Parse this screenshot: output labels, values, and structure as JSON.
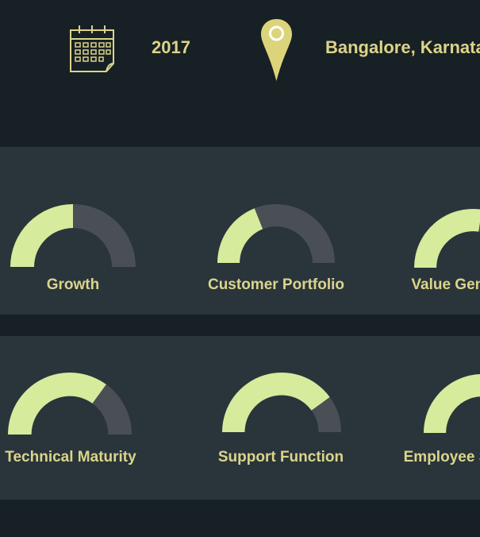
{
  "info": {
    "year": "2017",
    "location": "Bangalore, Karnataka",
    "calendar_icon": "calendar-icon",
    "location_icon": "map-pin-icon"
  },
  "colors": {
    "background": "#172024",
    "panel": "#29353b",
    "accent_text": "#dcd48a",
    "gauge_fill": "#d6eb9c",
    "gauge_track": "#4a4f56",
    "pin": "#dcd47a"
  },
  "gauges": [
    {
      "label": "Growth",
      "value": 0.5
    },
    {
      "label": "Customer Portfolio",
      "value": 0.38
    },
    {
      "label": "Value Generation",
      "value": 0.55
    },
    {
      "label": "Technical Maturity",
      "value": 0.7
    },
    {
      "label": "Support Function",
      "value": 0.8
    },
    {
      "label": "Employee Satisfaction",
      "value": 0.6
    }
  ]
}
